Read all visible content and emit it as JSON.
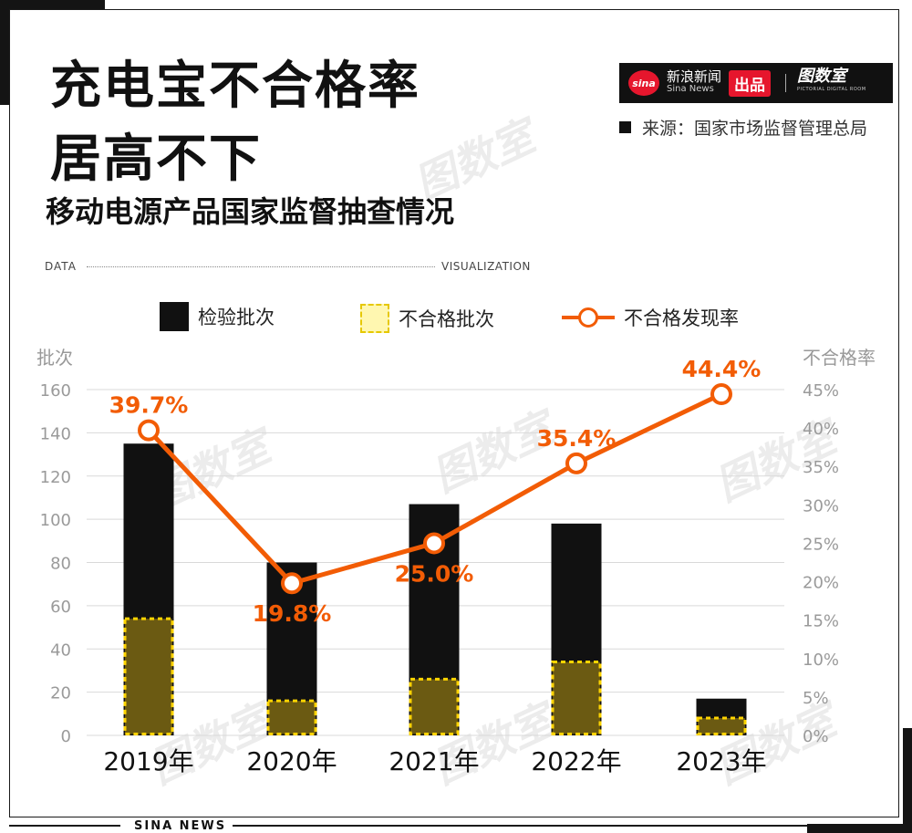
{
  "header": {
    "title_line1": "充电宝不合格率",
    "title_line2": "居高不下",
    "subtitle": "移动电源产品国家监督抽查情况"
  },
  "brand": {
    "logo": "sina",
    "name": "新浪新闻",
    "name_en": "Sina News",
    "badge": "出品",
    "studio": "图数室",
    "studio_en": "PICTORIAL DIGITAL ROOM"
  },
  "source": "来源：国家市场监督管理总局",
  "divider": {
    "left": "DATA",
    "right": "VISUALIZATION"
  },
  "footer": "SINA NEWS",
  "watermark": "图数室",
  "colors": {
    "bar": "#111111",
    "unqualified": "#6b5a12",
    "unqualified_border": "#ffd400",
    "line": "#f25c05",
    "grid": "#d9d9d9"
  },
  "chart_data": {
    "type": "bar",
    "categories": [
      "2019年",
      "2020年",
      "2021年",
      "2022年",
      "2023年"
    ],
    "series": [
      {
        "name": "检验批次",
        "type": "bar",
        "values": [
          135,
          80,
          107,
          98,
          17
        ]
      },
      {
        "name": "不合格批次",
        "type": "bar",
        "values": [
          54,
          16,
          26,
          34,
          8
        ]
      },
      {
        "name": "不合格发现率",
        "type": "line",
        "values": [
          39.7,
          19.8,
          25.0,
          35.4,
          44.4
        ]
      }
    ],
    "data_labels": [
      "39.7%",
      "19.8%",
      "25.0%",
      "35.4%",
      "44.4%"
    ],
    "ylabel_left": "批次",
    "ylabel_right": "不合格率",
    "ylim_left": [
      0,
      160
    ],
    "ylim_right": [
      0,
      45
    ],
    "yticks_left": [
      "0",
      "20",
      "40",
      "60",
      "80",
      "100",
      "120",
      "140",
      "160"
    ],
    "yticks_right": [
      "0%",
      "5%",
      "10%",
      "15%",
      "20%",
      "25%",
      "30%",
      "35%",
      "40%",
      "45%"
    ],
    "grid": true,
    "legend": "top"
  }
}
